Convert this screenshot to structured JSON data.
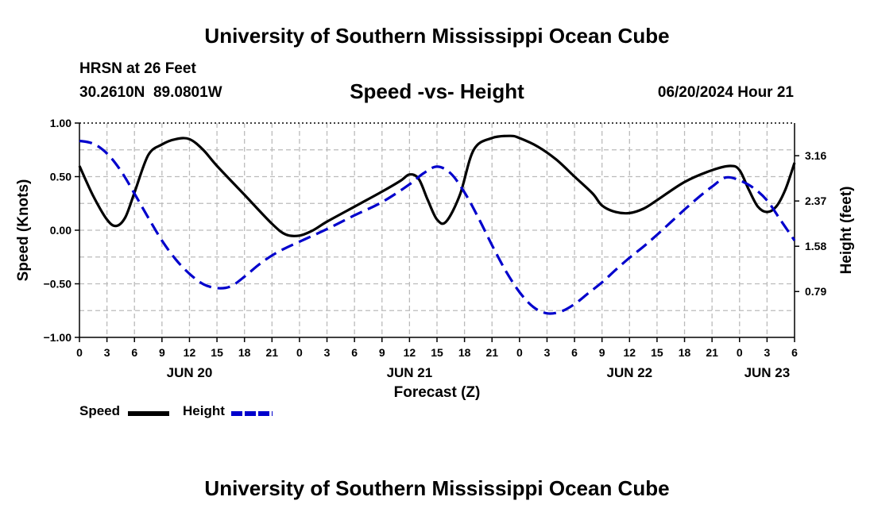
{
  "header": {
    "title": "University of Southern Mississippi Ocean Cube",
    "station": "HRSN at 26 Feet",
    "coords": "30.2610N  89.0801W",
    "chart_title": "Speed -vs- Height",
    "timestamp": "06/20/2024 Hour 21"
  },
  "footer": {
    "title": "University of Southern Mississippi Ocean Cube"
  },
  "legend": {
    "speed_label": "Speed",
    "height_label": "Height"
  },
  "colors": {
    "speed": "#000000",
    "height": "#0000cc",
    "grid": "#bbbbbb"
  },
  "chart_data": {
    "type": "line",
    "title": "Speed -vs- Height",
    "xlabel": "Forecast (Z)",
    "ylabel": "Speed (Knots)",
    "y2label": "Height (feet)",
    "xlim_hours": [
      0,
      78
    ],
    "ylim": [
      -1.0,
      1.0
    ],
    "y2lim": [
      -0.01,
      3.73
    ],
    "yticks": [
      1.0,
      0.5,
      0.0,
      -0.5,
      -1.0
    ],
    "ytick_labels": [
      "1.00",
      "0.50",
      "0.00",
      "−0.50",
      "−1.00"
    ],
    "y2ticks": [
      3.16,
      2.37,
      1.58,
      0.79
    ],
    "y2tick_labels": [
      "3.16",
      "2.37",
      "1.58",
      "0.79"
    ],
    "xtick_hours": [
      0,
      3,
      6,
      9,
      12,
      15,
      18,
      21,
      24,
      27,
      30,
      33,
      36,
      39,
      42,
      45,
      48,
      51,
      54,
      57,
      60,
      63,
      66,
      69,
      72,
      75,
      78
    ],
    "xtick_labels": [
      "0",
      "3",
      "6",
      "9",
      "12",
      "15",
      "18",
      "21",
      "0",
      "3",
      "6",
      "9",
      "12",
      "15",
      "18",
      "21",
      "0",
      "3",
      "6",
      "9",
      "12",
      "15",
      "18",
      "21",
      "0",
      "3",
      "6"
    ],
    "day_labels": [
      {
        "hour": 12,
        "label": "JUN 20"
      },
      {
        "hour": 36,
        "label": "JUN 21"
      },
      {
        "hour": 60,
        "label": "JUN 22"
      },
      {
        "hour": 75,
        "label": "JUN 23"
      }
    ],
    "series": [
      {
        "name": "Speed",
        "axis": "left",
        "style": "solid",
        "hours": [
          0,
          1.5,
          3,
          4,
          5,
          6,
          7.5,
          9,
          10.5,
          12,
          13.5,
          15,
          18,
          21,
          22.5,
          24,
          25.5,
          27,
          30,
          33,
          35,
          36,
          37,
          38,
          39,
          40,
          41.5,
          43,
          45,
          47,
          48,
          50,
          52,
          54,
          56,
          57,
          58.5,
          60,
          61.5,
          63,
          66,
          69,
          71,
          72,
          73,
          74,
          75,
          76,
          77,
          78
        ],
        "values": [
          0.6,
          0.32,
          0.1,
          0.04,
          0.12,
          0.35,
          0.7,
          0.8,
          0.85,
          0.85,
          0.75,
          0.6,
          0.33,
          0.06,
          -0.04,
          -0.05,
          0.0,
          0.08,
          0.22,
          0.36,
          0.46,
          0.52,
          0.48,
          0.28,
          0.1,
          0.08,
          0.33,
          0.75,
          0.86,
          0.88,
          0.86,
          0.78,
          0.66,
          0.5,
          0.34,
          0.23,
          0.17,
          0.16,
          0.2,
          0.28,
          0.45,
          0.56,
          0.6,
          0.56,
          0.38,
          0.22,
          0.17,
          0.22,
          0.38,
          0.63
        ]
      },
      {
        "name": "Height",
        "axis": "right",
        "style": "dashed",
        "hours": [
          0,
          1.5,
          3,
          4.5,
          6,
          7.5,
          9,
          10.5,
          12,
          13.5,
          15,
          16.5,
          18,
          19.5,
          21,
          22.5,
          24,
          27,
          30,
          33,
          36,
          37.5,
          39,
          40.5,
          42,
          43.5,
          45,
          46.5,
          48,
          49.5,
          51,
          52.5,
          54,
          55.5,
          57,
          58.5,
          60,
          61.5,
          63,
          64.5,
          66,
          67.5,
          69,
          70.5,
          72,
          73.5,
          75,
          76.5,
          78
        ],
        "values": [
          3.42,
          3.37,
          3.2,
          2.9,
          2.5,
          2.08,
          1.68,
          1.35,
          1.1,
          0.92,
          0.85,
          0.88,
          1.05,
          1.25,
          1.42,
          1.55,
          1.66,
          1.88,
          2.12,
          2.35,
          2.66,
          2.85,
          2.97,
          2.85,
          2.52,
          2.08,
          1.6,
          1.15,
          0.78,
          0.52,
          0.41,
          0.44,
          0.57,
          0.76,
          0.95,
          1.17,
          1.38,
          1.57,
          1.78,
          2.0,
          2.22,
          2.43,
          2.62,
          2.78,
          2.73,
          2.6,
          2.38,
          2.03,
          1.68
        ]
      }
    ]
  }
}
